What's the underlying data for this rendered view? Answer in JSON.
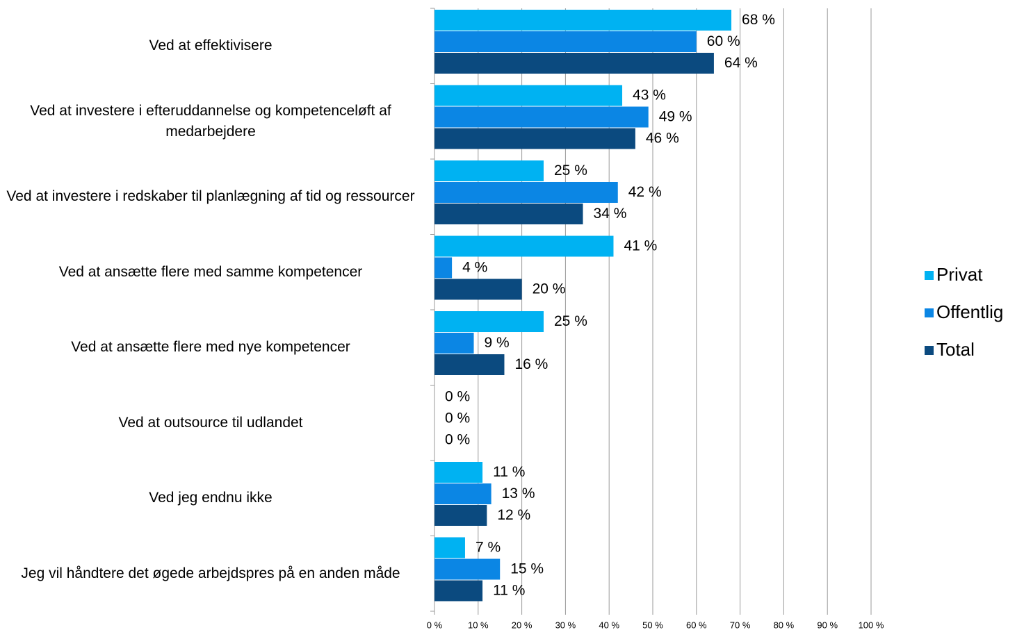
{
  "chart_data": {
    "type": "bar",
    "orientation": "horizontal",
    "categories": [
      "Ved at effektivisere",
      "Ved at investere i efteruddannelse og kompetenceløft af medarbejdere",
      "Ved at investere i redskaber til planlægning af tid og ressourcer",
      "Ved at ansætte flere med samme kompetencer",
      "Ved at ansætte flere med nye kompetencer",
      "Ved at outsource til udlandet",
      "Ved jeg endnu ikke",
      "Jeg vil håndtere det øgede arbejdspres på en anden måde"
    ],
    "series": [
      {
        "name": "Privat",
        "color": "#00b2f2",
        "values": [
          68,
          43,
          25,
          41,
          25,
          0,
          11,
          7
        ],
        "value_labels": [
          "68 %",
          "43 %",
          "25 %",
          "41 %",
          "25 %",
          "0 %",
          "11 %",
          "7 %"
        ]
      },
      {
        "name": "Offentlig",
        "color": "#0b86e4",
        "values": [
          60,
          49,
          42,
          4,
          9,
          0,
          13,
          15
        ],
        "value_labels": [
          "60 %",
          "49 %",
          "42 %",
          "4 %",
          "9 %",
          "0 %",
          "13 %",
          "15 %"
        ]
      },
      {
        "name": "Total",
        "color": "#0b4a7f",
        "values": [
          64,
          46,
          34,
          20,
          16,
          0,
          12,
          11
        ],
        "value_labels": [
          "64 %",
          "46 %",
          "34 %",
          "20 %",
          "16 %",
          "0 %",
          "12 %",
          "11 %"
        ]
      }
    ],
    "xlim": [
      0,
      100
    ],
    "xticks": [
      {
        "value": 0,
        "label": "0 %"
      },
      {
        "value": 10,
        "label": "10 %"
      },
      {
        "value": 20,
        "label": "20 %"
      },
      {
        "value": 30,
        "label": "30 %"
      },
      {
        "value": 40,
        "label": "40 %"
      },
      {
        "value": 50,
        "label": "50 %"
      },
      {
        "value": 60,
        "label": "60 %"
      },
      {
        "value": 70,
        "label": "70 %"
      },
      {
        "value": 80,
        "label": "80 %"
      },
      {
        "value": 90,
        "label": "90 %"
      },
      {
        "value": 100,
        "label": "100 %"
      }
    ],
    "grid": true,
    "legend": "right"
  }
}
